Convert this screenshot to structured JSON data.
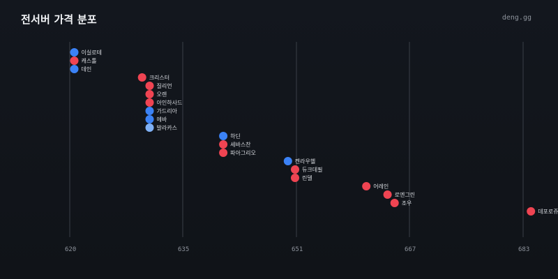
{
  "header": {
    "title": "전서버 가격 분포",
    "brand": "deng.gg"
  },
  "colors": {
    "red": "#ef4452",
    "blue": "#3b82f6",
    "light_blue": "#7fb0f5"
  },
  "chart_data": {
    "type": "scatter",
    "title": "전서버 가격 분포",
    "xlabel": "",
    "ylabel": "",
    "xlim": [
      620,
      683
    ],
    "x_ticks": [
      620,
      635,
      651,
      667,
      683
    ],
    "grid": true,
    "points": [
      {
        "label": "이실로테",
        "x": 620.6,
        "color": "blue"
      },
      {
        "label": "캐스톨",
        "x": 620.6,
        "color": "red"
      },
      {
        "label": "데인",
        "x": 620.6,
        "color": "blue"
      },
      {
        "label": "크리스터",
        "x": 629.6,
        "color": "red"
      },
      {
        "label": "질리언",
        "x": 630.6,
        "color": "red"
      },
      {
        "label": "오렌",
        "x": 630.6,
        "color": "red"
      },
      {
        "label": "아인하사드",
        "x": 630.6,
        "color": "red"
      },
      {
        "label": "가드리아",
        "x": 630.6,
        "color": "blue"
      },
      {
        "label": "에바",
        "x": 630.6,
        "color": "blue"
      },
      {
        "label": "발라카스",
        "x": 630.6,
        "color": "light_blue"
      },
      {
        "label": "하딘",
        "x": 640.7,
        "color": "blue"
      },
      {
        "label": "세바스찬",
        "x": 640.7,
        "color": "red"
      },
      {
        "label": "파아그리오",
        "x": 640.7,
        "color": "red"
      },
      {
        "label": "켄라우헬",
        "x": 649.8,
        "color": "blue"
      },
      {
        "label": "듀크데필",
        "x": 650.8,
        "color": "red"
      },
      {
        "label": "린델",
        "x": 650.8,
        "color": "red"
      },
      {
        "label": "어레인",
        "x": 660.9,
        "color": "red"
      },
      {
        "label": "로엔그린",
        "x": 663.9,
        "color": "red"
      },
      {
        "label": "조우",
        "x": 664.9,
        "color": "red"
      },
      {
        "label": "데포로쥬",
        "x": 684.1,
        "color": "red"
      }
    ]
  }
}
